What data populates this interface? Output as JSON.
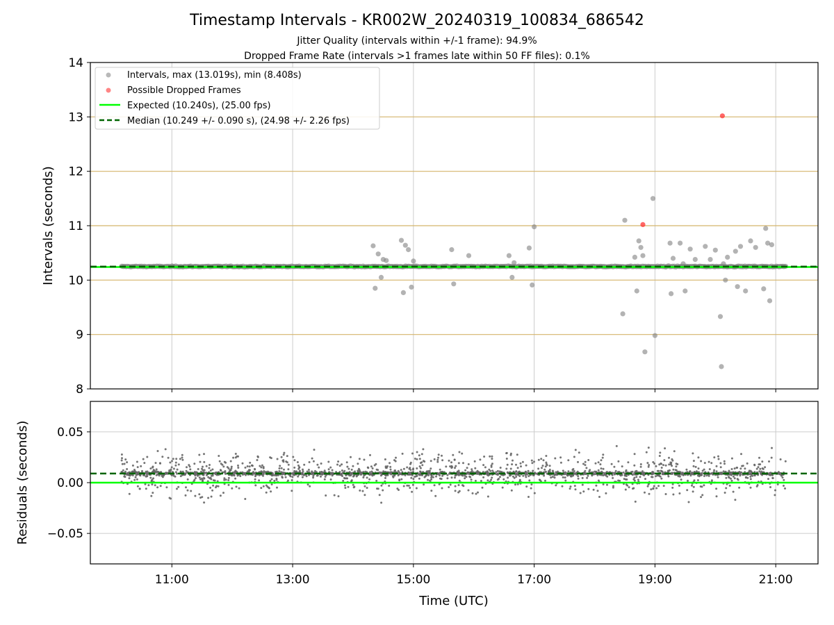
{
  "figure": {
    "title": "Timestamp Intervals - KR002W_20240319_100834_686542",
    "subtitle_1": "Jitter Quality (intervals within +/-1 frame): 94.9%",
    "subtitle_2": "Dropped Frame Rate (intervals >1 frames late within 50 FF files): 0.1%",
    "xlabel": "Time (UTC)"
  },
  "colors": {
    "interval_points": "#808080",
    "dropped_points": "#ff3333",
    "expected_line": "#00ff00",
    "median_line": "#006400",
    "grid": "#cccccc",
    "threshold_grid": "#d4b56a",
    "residual_points": "#666666"
  },
  "chart_data": [
    {
      "type": "scatter",
      "panel": "intervals",
      "ylabel": "Intervals (seconds)",
      "ylim": [
        8,
        14
      ],
      "yticks": [
        "8",
        "9",
        "10",
        "11",
        "12",
        "13",
        "14"
      ],
      "xlim_hours": [
        9.65,
        21.7
      ],
      "xticks": [
        "11:00",
        "13:00",
        "15:00",
        "17:00",
        "19:00",
        "21:00"
      ],
      "grid": true,
      "legend_position": "top-left",
      "legend": [
        "Intervals, max (13.019s), min (8.408s)",
        "Possible Dropped Frames",
        "Expected (10.240s), (25.00 fps)",
        "Median (10.249 +/- 0.090 s), (24.98 +/- 2.26 fps)"
      ],
      "expected": 10.24,
      "median": 10.249,
      "interval_band": {
        "x_start": "10:10",
        "x_end": "21:10",
        "y": 10.25
      },
      "outliers": {
        "x": [
          "14:20",
          "14:22",
          "14:25",
          "14:28",
          "14:30",
          "14:33",
          "14:48",
          "14:50",
          "14:52",
          "14:55",
          "14:58",
          "15:00",
          "15:38",
          "15:40",
          "15:55",
          "16:35",
          "16:38",
          "16:40",
          "16:55",
          "16:58",
          "17:00",
          "18:28",
          "18:30",
          "18:40",
          "18:42",
          "18:44",
          "18:46",
          "18:48",
          "18:50",
          "19:00",
          "19:15",
          "19:16",
          "19:18",
          "19:25",
          "19:28",
          "19:30",
          "19:35",
          "19:40",
          "19:50",
          "19:55",
          "20:00",
          "20:05",
          "20:06",
          "20:08",
          "20:10",
          "20:12",
          "20:20",
          "20:22",
          "20:25",
          "20:30",
          "20:35",
          "20:40",
          "20:48",
          "20:50",
          "20:52",
          "20:54",
          "20:56"
        ],
        "y": [
          10.63,
          9.85,
          10.48,
          10.05,
          10.38,
          10.36,
          10.73,
          9.77,
          10.64,
          10.56,
          9.87,
          10.35,
          10.56,
          9.93,
          10.45,
          10.45,
          10.05,
          10.32,
          10.59,
          9.91,
          10.98,
          9.38,
          11.1,
          10.42,
          9.8,
          10.72,
          10.6,
          10.45,
          8.68,
          8.98,
          10.68,
          9.75,
          10.4,
          10.68,
          10.3,
          9.8,
          10.57,
          10.38,
          10.62,
          10.38,
          10.55,
          9.33,
          8.41,
          10.3,
          10.0,
          10.42,
          10.53,
          9.88,
          10.62,
          9.8,
          10.72,
          10.6,
          9.84,
          10.95,
          10.68,
          9.62,
          10.65
        ]
      },
      "dropped_frames": {
        "x": [
          "18:48",
          "20:07"
        ],
        "y": [
          11.02,
          13.02
        ]
      },
      "extra_outlier": {
        "x": "18:58",
        "y": 11.5
      }
    },
    {
      "type": "scatter",
      "panel": "residuals",
      "ylabel": "Residuals (seconds)",
      "ylim": [
        -0.08,
        0.08
      ],
      "yticks": [
        "−0.05",
        "0.00",
        "0.05"
      ],
      "ytick_values": [
        -0.05,
        0.0,
        0.05
      ],
      "xlim_hours": [
        9.65,
        21.7
      ],
      "xticks": [
        "11:00",
        "13:00",
        "15:00",
        "17:00",
        "19:00",
        "21:00"
      ],
      "grid": true,
      "expected_residual": 0.0,
      "median_residual": 0.009,
      "point_count_approx": 2500,
      "x_range": [
        "10:10",
        "21:10"
      ]
    }
  ]
}
